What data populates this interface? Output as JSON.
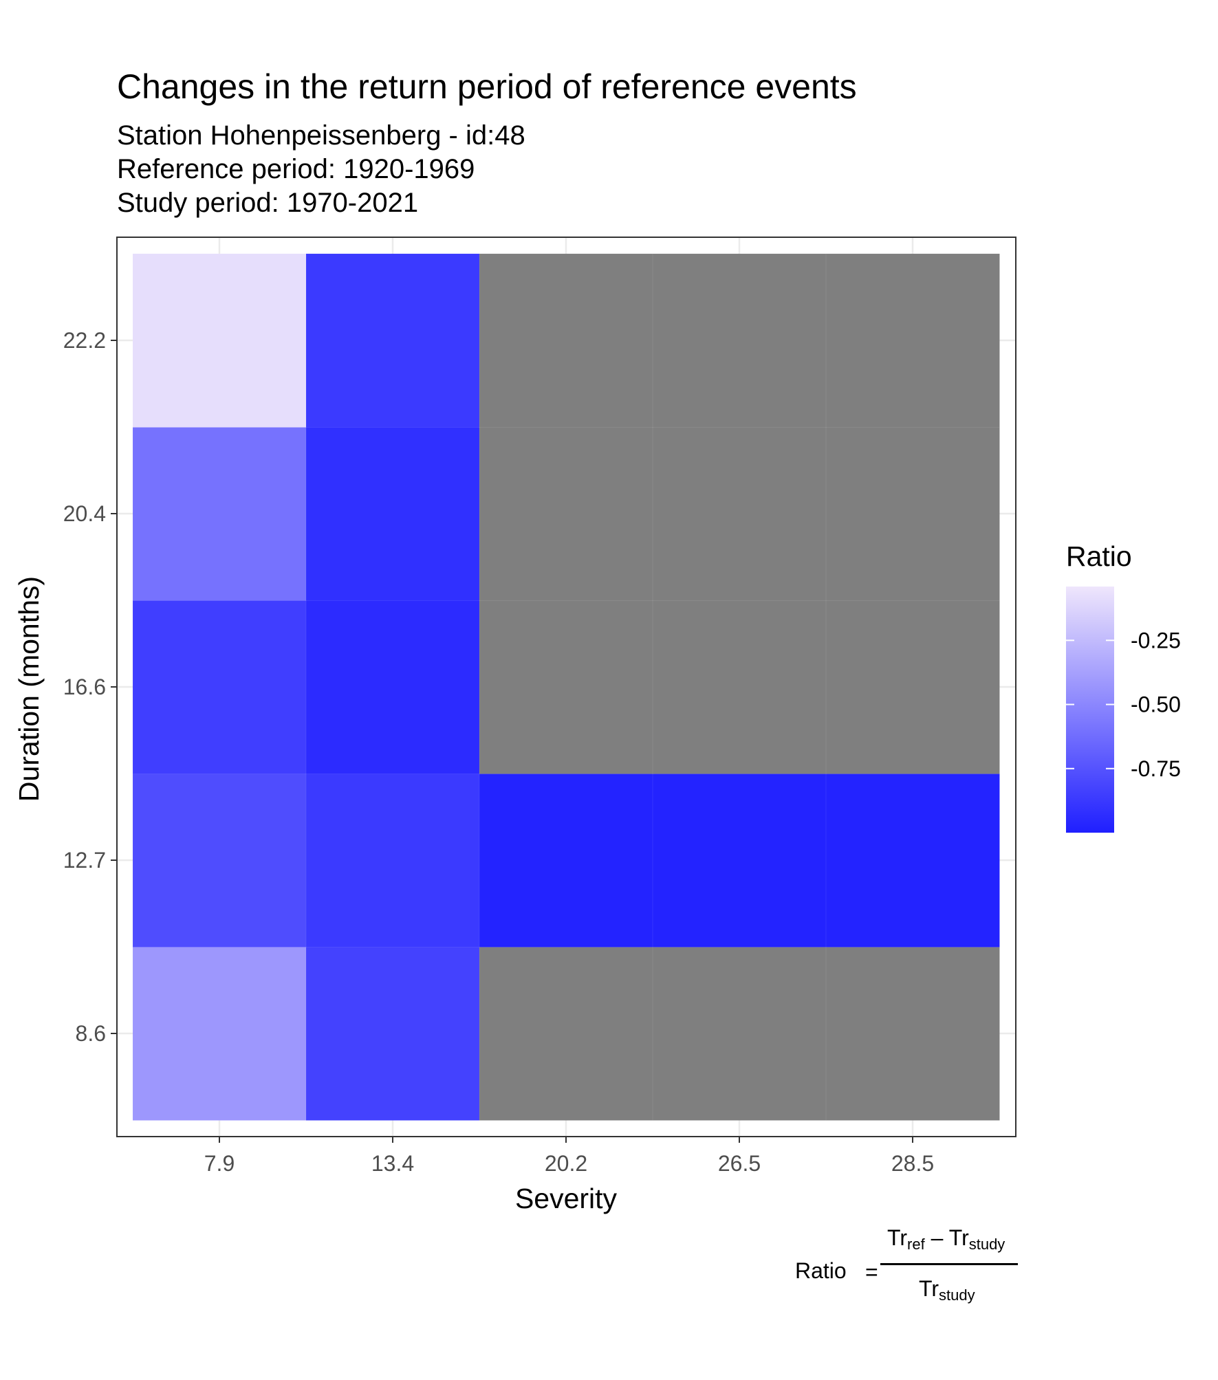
{
  "chart_data": {
    "type": "heatmap",
    "title": "Changes in the return period of reference events",
    "subtitle_lines": [
      "Station Hohenpeissenberg - id:48",
      "Reference period: 1920-1969",
      "Study period: 1970-2021"
    ],
    "xlabel": "Severity",
    "ylabel": "Duration (months)",
    "x_categories": [
      "7.9",
      "13.4",
      "20.2",
      "26.5",
      "28.5"
    ],
    "y_categories": [
      "8.6",
      "12.7",
      "16.6",
      "20.4",
      "22.2"
    ],
    "values": [
      [
        -0.42,
        -0.83,
        null,
        null,
        null
      ],
      [
        -0.78,
        -0.87,
        -0.98,
        -0.98,
        -0.98
      ],
      [
        -0.85,
        -0.94,
        null,
        null,
        null
      ],
      [
        -0.6,
        -0.92,
        null,
        null,
        null
      ],
      [
        -0.08,
        -0.87,
        null,
        null,
        null
      ]
    ],
    "missing_color": "#7f7f7f",
    "color_scale": {
      "low": "#1f1fff",
      "high": "#efe6fc",
      "min": -1.0,
      "max": -0.04
    },
    "legend": {
      "title": "Ratio",
      "ticks": [
        -0.25,
        -0.5,
        -0.75
      ],
      "tick_labels": [
        "-0.25",
        "-0.50",
        "-0.75"
      ],
      "position": "right"
    },
    "grid": true,
    "caption": {
      "label": "Ratio",
      "equals": "=",
      "numerator": [
        "Tr",
        "ref",
        " – Tr",
        "study"
      ],
      "denominator": [
        "Tr",
        "study"
      ]
    }
  }
}
